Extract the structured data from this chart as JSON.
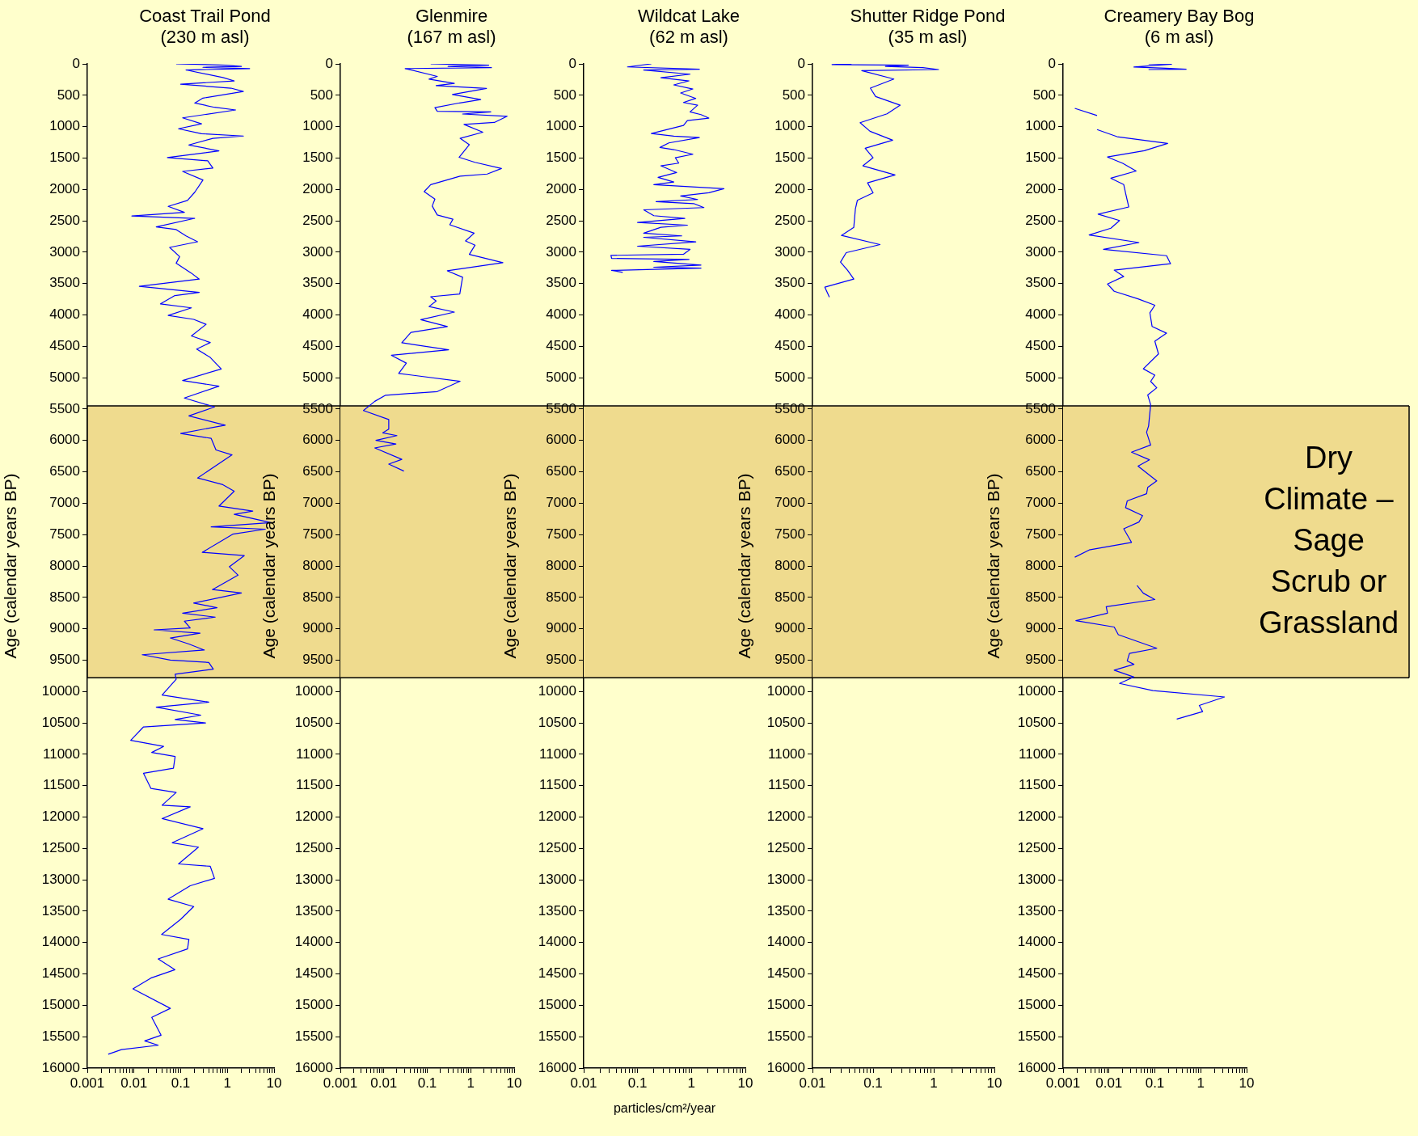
{
  "chart_data": [
    {
      "type": "line",
      "title": "Coast Trail Pond\n(230 m asl)",
      "ylabel": "Age (calendar years BP)",
      "orientation": "horizontal",
      "log": "x",
      "xlim": [
        0.001,
        10
      ],
      "ylim": [
        16000,
        0
      ],
      "xticks": [
        0.001,
        {
          "value": 0.002,
          "label": null
        },
        {
          "value": 0.003,
          "label": null
        },
        {
          "value": 0.004,
          "label": null
        },
        {
          "value": 0.005,
          "label": null
        },
        {
          "value": 0.006,
          "label": null
        },
        {
          "value": 0.007,
          "label": null
        },
        {
          "value": 0.008,
          "label": null
        },
        {
          "value": 0.009,
          "label": null
        },
        0.01,
        {
          "value": 0.02,
          "label": null
        },
        {
          "value": 0.03,
          "label": null
        },
        {
          "value": 0.04,
          "label": null
        },
        {
          "value": 0.05,
          "label": null
        },
        {
          "value": 0.06,
          "label": null
        },
        {
          "value": 0.07,
          "label": null
        },
        {
          "value": 0.08,
          "label": null
        },
        {
          "value": 0.09,
          "label": null
        },
        0.1,
        {
          "value": 0.2,
          "label": null
        },
        {
          "value": 0.3,
          "label": null
        },
        {
          "value": 0.4,
          "label": null
        },
        {
          "value": 0.5,
          "label": null
        },
        {
          "value": 0.6,
          "label": null
        },
        {
          "value": 0.7,
          "label": null
        },
        {
          "value": 0.8,
          "label": null
        },
        {
          "value": 0.9,
          "label": null
        },
        1,
        {
          "value": 2,
          "label": null
        },
        {
          "value": 3,
          "label": null
        },
        {
          "value": 4,
          "label": null
        },
        {
          "value": 5,
          "label": null
        },
        {
          "value": 6,
          "label": null
        },
        {
          "value": 7,
          "label": null
        },
        {
          "value": 8,
          "label": null
        },
        {
          "value": 9,
          "label": null
        },
        10
      ],
      "yticks": [
        0,
        500,
        1000,
        1500,
        2000,
        2500,
        3000,
        3500,
        4000,
        4500,
        5000,
        5500,
        6000,
        6500,
        7000,
        7500,
        8000,
        8500,
        9000,
        9500,
        10000,
        10500,
        11000,
        11500,
        12000,
        12500,
        13000,
        13500,
        14000,
        14500,
        15000,
        15500,
        16000
      ],
      "bands": [
        {
          "axis": "y",
          "from": 5450,
          "to": 9780,
          "color": "#efdb8e"
        }
      ],
      "series": [
        {
          "color": "#0000ff",
          "x": [
            0,
            20,
            40,
            55,
            75,
            97,
            218,
            271,
            324,
            387,
            439,
            545,
            624,
            692,
            734,
            860,
            955,
            1034,
            1113,
            1150,
            1187,
            1292,
            1387,
            1492,
            1545,
            1660,
            1713,
            1850,
            2045,
            2176,
            2271,
            2366,
            2424,
            2461,
            2598,
            2640,
            2740,
            2834,
            2924,
            3071,
            3177,
            3335,
            3429,
            3545,
            3640,
            3692,
            3824,
            3887,
            4008,
            4071,
            4150,
            4335,
            4440,
            4545,
            4677,
            4861,
            5045,
            5135,
            5324,
            5466,
            5609,
            5756,
            5888,
            5967,
            6151,
            6230,
            6598,
            6704,
            6809,
            7046,
            7125,
            7177,
            7309,
            7377,
            7414,
            7493,
            7783,
            7835,
            8012,
            8146,
            8376,
            8430,
            8590,
            8665,
            8751,
            8815,
            8879,
            8986,
            9018,
            9072,
            9147,
            9243,
            9339,
            9414,
            9500,
            9537,
            9644,
            9725,
            9805,
            10056,
            10169,
            10249,
            10377,
            10447,
            10500,
            10564,
            10778,
            10875,
            10971,
            11035,
            11223,
            11303,
            11544,
            11608,
            11811,
            11838,
            12025,
            12186,
            12410,
            12480,
            12747,
            12785,
            12977,
            13095,
            13309,
            13427,
            13630,
            13871,
            13951,
            14101,
            14261,
            14433,
            14566,
            14737,
            15048,
            15192,
            15476,
            15567,
            15636,
            15706,
            15780
          ],
          "values": [
            0.08,
            0.9,
            2,
            0.3,
            3,
            0.13,
            0.8,
            1.4,
            0.1,
            1.2,
            2.2,
            0.3,
            0.2,
            0.53,
            1.5,
            0.11,
            0.28,
            0.09,
            0.28,
            2.2,
            0.49,
            0.15,
            0.66,
            0.052,
            0.38,
            0.49,
            0.11,
            0.3,
            0.2,
            0.14,
            0.054,
            0.12,
            0.009,
            0.2,
            0.03,
            0.08,
            0.13,
            0.23,
            0.058,
            0.095,
            0.08,
            0.17,
            0.25,
            0.013,
            0.25,
            0.075,
            0.037,
            0.17,
            0.054,
            0.19,
            0.35,
            0.17,
            0.43,
            0.22,
            0.43,
            0.74,
            0.11,
            0.66,
            0.12,
            0.53,
            0.15,
            0.9,
            0.1,
            0.45,
            0.57,
            1.26,
            0.23,
            0.8,
            1.4,
            0.66,
            3.5,
            1.4,
            8.5,
            0.45,
            6.5,
            1.3,
            0.29,
            2.3,
            1.1,
            1.7,
            0.48,
            2,
            0.19,
            0.6,
            0.11,
            0.55,
            0.12,
            0.16,
            0.027,
            0.26,
            0.06,
            0.15,
            0.32,
            0.015,
            0.06,
            0.4,
            0.5,
            0.076,
            0.08,
            0.04,
            0.4,
            0.03,
            0.27,
            0.076,
            0.34,
            0.016,
            0.0085,
            0.043,
            0.024,
            0.076,
            0.07,
            0.016,
            0.023,
            0.08,
            0.04,
            0.16,
            0.04,
            0.3,
            0.066,
            0.24,
            0.09,
            0.43,
            0.53,
            0.16,
            0.054,
            0.19,
            0.1,
            0.039,
            0.15,
            0.14,
            0.033,
            0.075,
            0.023,
            0.0095,
            0.06,
            0.024,
            0.038,
            0.017,
            0.033,
            0.0054,
            0.0028
          ]
        }
      ]
    },
    {
      "type": "line",
      "title": "Glenmire\n(167 m asl)",
      "ylabel": "Age (calendar years BP)",
      "orientation": "horizontal",
      "log": "x",
      "xlim": [
        0.001,
        10
      ],
      "ylim": [
        16000,
        0
      ],
      "xticks": [
        0.001,
        {
          "value": 0.002,
          "label": null
        },
        {
          "value": 0.003,
          "label": null
        },
        {
          "value": 0.004,
          "label": null
        },
        {
          "value": 0.005,
          "label": null
        },
        {
          "value": 0.006,
          "label": null
        },
        {
          "value": 0.007,
          "label": null
        },
        {
          "value": 0.008,
          "label": null
        },
        {
          "value": 0.009,
          "label": null
        },
        0.01,
        {
          "value": 0.02,
          "label": null
        },
        {
          "value": 0.03,
          "label": null
        },
        {
          "value": 0.04,
          "label": null
        },
        {
          "value": 0.05,
          "label": null
        },
        {
          "value": 0.06,
          "label": null
        },
        {
          "value": 0.07,
          "label": null
        },
        {
          "value": 0.08,
          "label": null
        },
        {
          "value": 0.09,
          "label": null
        },
        0.1,
        {
          "value": 0.2,
          "label": null
        },
        {
          "value": 0.3,
          "label": null
        },
        {
          "value": 0.4,
          "label": null
        },
        {
          "value": 0.5,
          "label": null
        },
        {
          "value": 0.6,
          "label": null
        },
        {
          "value": 0.7,
          "label": null
        },
        {
          "value": 0.8,
          "label": null
        },
        {
          "value": 0.9,
          "label": null
        },
        1,
        {
          "value": 2,
          "label": null
        },
        {
          "value": 3,
          "label": null
        },
        {
          "value": 4,
          "label": null
        },
        {
          "value": 5,
          "label": null
        },
        {
          "value": 6,
          "label": null
        },
        {
          "value": 7,
          "label": null
        },
        {
          "value": 8,
          "label": null
        },
        {
          "value": 9,
          "label": null
        },
        10
      ],
      "yticks": [
        0,
        500,
        1000,
        1500,
        2000,
        2500,
        3000,
        3500,
        4000,
        4500,
        5000,
        5500,
        6000,
        6500,
        7000,
        7500,
        8000,
        8500,
        9000,
        9500,
        10000,
        10500,
        11000,
        11500,
        12000,
        12500,
        13000,
        13500,
        14000,
        14500,
        15000,
        15500,
        16000
      ],
      "bands": [
        {
          "axis": "y",
          "from": 5450,
          "to": 9780,
          "color": "#efdb8e"
        }
      ],
      "series": [
        {
          "color": "#0000ff",
          "x": [
            0,
            20,
            40,
            60,
            75,
            200,
            244,
            311,
            346,
            391,
            488,
            568,
            622,
            697,
            755,
            764,
            799,
            835,
            933,
            964,
            1088,
            1186,
            1288,
            1488,
            1568,
            1666,
            1755,
            1790,
            1924,
            2035,
            2155,
            2266,
            2408,
            2475,
            2564,
            2697,
            2821,
            2888,
            3035,
            3168,
            3297,
            3399,
            3666,
            3710,
            3777,
            3866,
            3955,
            4075,
            4186,
            4279,
            4444,
            4555,
            4643,
            4768,
            4932,
            5057,
            5221,
            5279,
            5377,
            5524,
            5666,
            5821,
            5879,
            5923,
            5999,
            6057,
            6119,
            6301,
            6377,
            6488
          ],
          "values": [
            0.12,
            2.6,
            0.3,
            3,
            0.031,
            0.17,
            0.11,
            0.42,
            0.16,
            2.3,
            0.38,
            1.7,
            0.56,
            0.15,
            0.17,
            2.9,
            0.65,
            6.9,
            3.5,
            0.7,
            1.9,
            0.57,
            0.93,
            0.54,
            1.25,
            5.1,
            2.4,
            0.57,
            0.12,
            0.085,
            0.15,
            0.13,
            0.17,
            0.39,
            0.33,
            1.2,
            0.76,
            1.26,
            0.93,
            5.5,
            0.29,
            0.65,
            0.56,
            0.12,
            0.16,
            0.11,
            0.42,
            0.071,
            0.29,
            0.042,
            0.026,
            0.31,
            0.015,
            0.033,
            0.022,
            0.57,
            0.17,
            0.011,
            0.0062,
            0.0034,
            0.013,
            0.013,
            0.0095,
            0.02,
            0.0066,
            0.019,
            0.0062,
            0.026,
            0.013,
            0.029
          ]
        }
      ]
    },
    {
      "type": "line",
      "title": "Wildcat Lake\n(62 m asl)",
      "xlabel": "particles/cm²/year",
      "ylabel": "Age (calendar years BP)",
      "orientation": "horizontal",
      "log": "x",
      "xlim": [
        0.01,
        10
      ],
      "ylim": [
        16000,
        0
      ],
      "xticks": [
        0.01,
        {
          "value": 0.02,
          "label": null
        },
        {
          "value": 0.03,
          "label": null
        },
        {
          "value": 0.04,
          "label": null
        },
        {
          "value": 0.05,
          "label": null
        },
        {
          "value": 0.06,
          "label": null
        },
        {
          "value": 0.07,
          "label": null
        },
        {
          "value": 0.08,
          "label": null
        },
        {
          "value": 0.09,
          "label": null
        },
        0.1,
        {
          "value": 0.2,
          "label": null
        },
        {
          "value": 0.3,
          "label": null
        },
        {
          "value": 0.4,
          "label": null
        },
        {
          "value": 0.5,
          "label": null
        },
        {
          "value": 0.6,
          "label": null
        },
        {
          "value": 0.7,
          "label": null
        },
        {
          "value": 0.8,
          "label": null
        },
        {
          "value": 0.9,
          "label": null
        },
        1,
        {
          "value": 2,
          "label": null
        },
        {
          "value": 3,
          "label": null
        },
        {
          "value": 4,
          "label": null
        },
        {
          "value": 5,
          "label": null
        },
        {
          "value": 6,
          "label": null
        },
        {
          "value": 7,
          "label": null
        },
        {
          "value": 8,
          "label": null
        },
        {
          "value": 9,
          "label": null
        },
        10
      ],
      "yticks": [
        0,
        500,
        1000,
        1500,
        2000,
        2500,
        3000,
        3500,
        4000,
        4500,
        5000,
        5500,
        6000,
        6500,
        7000,
        7500,
        8000,
        8500,
        9000,
        9500,
        10000,
        10500,
        11000,
        11500,
        12000,
        12500,
        13000,
        13500,
        14000,
        14500,
        15000,
        15500,
        16000
      ],
      "bands": [
        {
          "axis": "y",
          "from": 5450,
          "to": 9780,
          "color": "#efdb8e"
        }
      ],
      "series": [
        {
          "color": "#0000ff",
          "x": [
            0,
            48,
            86,
            99,
            164,
            220,
            271,
            335,
            400,
            464,
            550,
            615,
            658,
            765,
            808,
            864,
            903,
            980,
            1109,
            1152,
            1173,
            1259,
            1332,
            1366,
            1440,
            1495,
            1581,
            1624,
            1732,
            1809,
            1882,
            1925,
            1989,
            2054,
            2105,
            2161,
            2196,
            2226,
            2290,
            2325,
            2419,
            2462,
            2527,
            2570,
            2604,
            2698,
            2741,
            2763,
            2836,
            2905,
            2956,
            3033,
            3051,
            3100,
            3115,
            3149,
            3205,
            3240,
            3255,
            3291,
            3321
          ],
          "values": [
            0.18,
            0.065,
            1.4,
            0.13,
            0.94,
            0.27,
            0.9,
            0.47,
            1.06,
            0.63,
            1.2,
            0.71,
            1.3,
            0.94,
            1.5,
            2.1,
            0.84,
            0.71,
            0.18,
            0.47,
            1.4,
            0.38,
            0.26,
            0.47,
            1.06,
            0.5,
            0.58,
            0.27,
            0.53,
            0.24,
            0.47,
            0.2,
            4,
            2.1,
            0.63,
            1.3,
            0.22,
            1.1,
            1.7,
            0.13,
            0.2,
            0.75,
            0.1,
            0.84,
            0.27,
            0.13,
            0.66,
            0.13,
            1.2,
            0.1,
            0.94,
            0.71,
            0.032,
            0.033,
            0.9,
            0.2,
            1.5,
            0.2,
            1.5,
            0.033,
            0.053
          ]
        }
      ]
    },
    {
      "type": "line",
      "title": "Shutter Ridge Pond\n(35 m asl)",
      "ylabel": "Age (calendar years BP)",
      "orientation": "horizontal",
      "log": "x",
      "xlim": [
        0.01,
        10
      ],
      "ylim": [
        16000,
        0
      ],
      "xticks": [
        0.01,
        {
          "value": 0.02,
          "label": null
        },
        {
          "value": 0.03,
          "label": null
        },
        {
          "value": 0.04,
          "label": null
        },
        {
          "value": 0.05,
          "label": null
        },
        {
          "value": 0.06,
          "label": null
        },
        {
          "value": 0.07,
          "label": null
        },
        {
          "value": 0.08,
          "label": null
        },
        {
          "value": 0.09,
          "label": null
        },
        0.1,
        {
          "value": 0.2,
          "label": null
        },
        {
          "value": 0.3,
          "label": null
        },
        {
          "value": 0.4,
          "label": null
        },
        {
          "value": 0.5,
          "label": null
        },
        {
          "value": 0.6,
          "label": null
        },
        {
          "value": 0.7,
          "label": null
        },
        {
          "value": 0.8,
          "label": null
        },
        {
          "value": 0.9,
          "label": null
        },
        1,
        {
          "value": 2,
          "label": null
        },
        {
          "value": 3,
          "label": null
        },
        {
          "value": 4,
          "label": null
        },
        {
          "value": 5,
          "label": null
        },
        {
          "value": 6,
          "label": null
        },
        {
          "value": 7,
          "label": null
        },
        {
          "value": 8,
          "label": null
        },
        {
          "value": 9,
          "label": null
        },
        10
      ],
      "yticks": [
        0,
        500,
        1000,
        1500,
        2000,
        2500,
        3000,
        3500,
        4000,
        4500,
        5000,
        5500,
        6000,
        6500,
        7000,
        7500,
        8000,
        8500,
        9000,
        9500,
        10000,
        10500,
        11000,
        11500,
        12000,
        12500,
        13000,
        13500,
        14000,
        14500,
        15000,
        15500,
        16000
      ],
      "bands": [
        {
          "axis": "y",
          "from": 5450,
          "to": 9780,
          "color": "#efdb8e"
        }
      ],
      "series": [
        {
          "color": "#0000ff",
          "x": [
            0,
            10,
            20,
            40,
            60,
            90,
            108,
            241,
            387,
            520,
            658,
            795,
            937,
            1074,
            1216,
            1345,
            1495,
            1624,
            1770,
            1895,
            2054,
            2174,
            2312,
            2604,
            2733,
            2879,
            3008,
            3158,
            3291,
            3429,
            3558,
            3716
          ],
          "values": [
            0.044,
            0.021,
            0.38,
            0.16,
            0.66,
            1.2,
            0.065,
            0.22,
            0.09,
            0.11,
            0.28,
            0.17,
            0.061,
            0.089,
            0.21,
            0.074,
            0.1,
            0.068,
            0.23,
            0.081,
            0.1,
            0.055,
            0.051,
            0.048,
            0.03,
            0.13,
            0.036,
            0.029,
            0.038,
            0.048,
            0.016,
            0.019
          ]
        }
      ]
    },
    {
      "type": "line",
      "title": "Creamery Bay Bog\n(6 m asl)",
      "ylabel": "Age (calendar years BP)",
      "orientation": "horizontal",
      "log": "x",
      "xlim": [
        0.001,
        10
      ],
      "ylim": [
        16000,
        0
      ],
      "xticks": [
        0.001,
        {
          "value": 0.002,
          "label": null
        },
        {
          "value": 0.003,
          "label": null
        },
        {
          "value": 0.004,
          "label": null
        },
        {
          "value": 0.005,
          "label": null
        },
        {
          "value": 0.006,
          "label": null
        },
        {
          "value": 0.007,
          "label": null
        },
        {
          "value": 0.008,
          "label": null
        },
        {
          "value": 0.009,
          "label": null
        },
        0.01,
        {
          "value": 0.02,
          "label": null
        },
        {
          "value": 0.03,
          "label": null
        },
        {
          "value": 0.04,
          "label": null
        },
        {
          "value": 0.05,
          "label": null
        },
        {
          "value": 0.06,
          "label": null
        },
        {
          "value": 0.07,
          "label": null
        },
        {
          "value": 0.08,
          "label": null
        },
        {
          "value": 0.09,
          "label": null
        },
        0.1,
        {
          "value": 0.2,
          "label": null
        },
        {
          "value": 0.3,
          "label": null
        },
        {
          "value": 0.4,
          "label": null
        },
        {
          "value": 0.5,
          "label": null
        },
        {
          "value": 0.6,
          "label": null
        },
        {
          "value": 0.7,
          "label": null
        },
        {
          "value": 0.8,
          "label": null
        },
        {
          "value": 0.9,
          "label": null
        },
        1,
        {
          "value": 2,
          "label": null
        },
        {
          "value": 3,
          "label": null
        },
        {
          "value": 4,
          "label": null
        },
        {
          "value": 5,
          "label": null
        },
        {
          "value": 6,
          "label": null
        },
        {
          "value": 7,
          "label": null
        },
        {
          "value": 8,
          "label": null
        },
        {
          "value": 9,
          "label": null
        },
        10
      ],
      "yticks": [
        0,
        500,
        1000,
        1500,
        2000,
        2500,
        3000,
        3500,
        4000,
        4500,
        5000,
        5500,
        6000,
        6500,
        7000,
        7500,
        8000,
        8500,
        9000,
        9500,
        10000,
        10500,
        11000,
        11500,
        12000,
        12500,
        13000,
        13500,
        14000,
        14500,
        15000,
        15500,
        16000
      ],
      "bands": [
        {
          "axis": "y",
          "from": 5450,
          "to": 9780,
          "color": "#efdb8e",
          "label": "Dry Climate – Sage Scrub or Grassland"
        }
      ],
      "series": [
        {
          "color": "#0000ff",
          "x": [
            0,
            5,
            50,
            70,
            85,
            90,
            400,
            708,
            823,
            900,
            1046,
            1160,
            1268,
            1383,
            1484,
            1585,
            1707,
            1822,
            1923,
            2058,
            2280,
            2395,
            2496,
            2618,
            2726,
            2847,
            2955,
            3056,
            3184,
            3286,
            3387,
            3508,
            3623,
            3744,
            3846,
            3967,
            4183,
            4291,
            4419,
            4622,
            4858,
            4959,
            5060,
            5161,
            5276,
            5431,
            5769,
            5870,
            6072,
            6187,
            6308,
            6410,
            6645,
            6747,
            6848,
            6963,
            7071,
            7199,
            7300,
            7408,
            7624,
            7745,
            7860,
            8100,
            8312,
            8433,
            8535,
            8650,
            8751,
            8872,
            8973,
            9095,
            9311,
            9392,
            9513,
            9567,
            9661,
            9769,
            9871,
            9985,
            10087,
            10222,
            10320,
            10440
          ],
          "values": [
            0.073,
            0.23,
            0.035,
            0.17,
            0.48,
            0.073,
            null,
            0.0018,
            0.0055,
            null,
            0.0055,
            0.015,
            0.19,
            0.059,
            0.0093,
            0.02,
            0.039,
            0.011,
            0.021,
            0.023,
            0.027,
            0.0058,
            0.017,
            0.011,
            0.0037,
            0.045,
            0.0076,
            0.18,
            0.22,
            0.013,
            0.021,
            0.0093,
            0.013,
            0.043,
            0.1,
            0.078,
            0.087,
            0.18,
            0.1,
            0.12,
            0.056,
            0.1,
            0.081,
            0.11,
            0.07,
            0.081,
            0.073,
            0.066,
            0.081,
            0.031,
            0.076,
            0.043,
            0.11,
            0.07,
            0.066,
            0.025,
            0.023,
            0.054,
            0.045,
            0.021,
            0.031,
            0.0037,
            0.0018,
            null,
            0.041,
            0.056,
            0.1,
            0.0087,
            0.0093,
            0.0019,
            0.013,
            0.016,
            0.11,
            0.028,
            0.025,
            0.035,
            0.013,
            0.035,
            0.017,
            0.091,
            3.3,
            0.93,
            1.1,
            0.3
          ]
        }
      ]
    }
  ]
}
